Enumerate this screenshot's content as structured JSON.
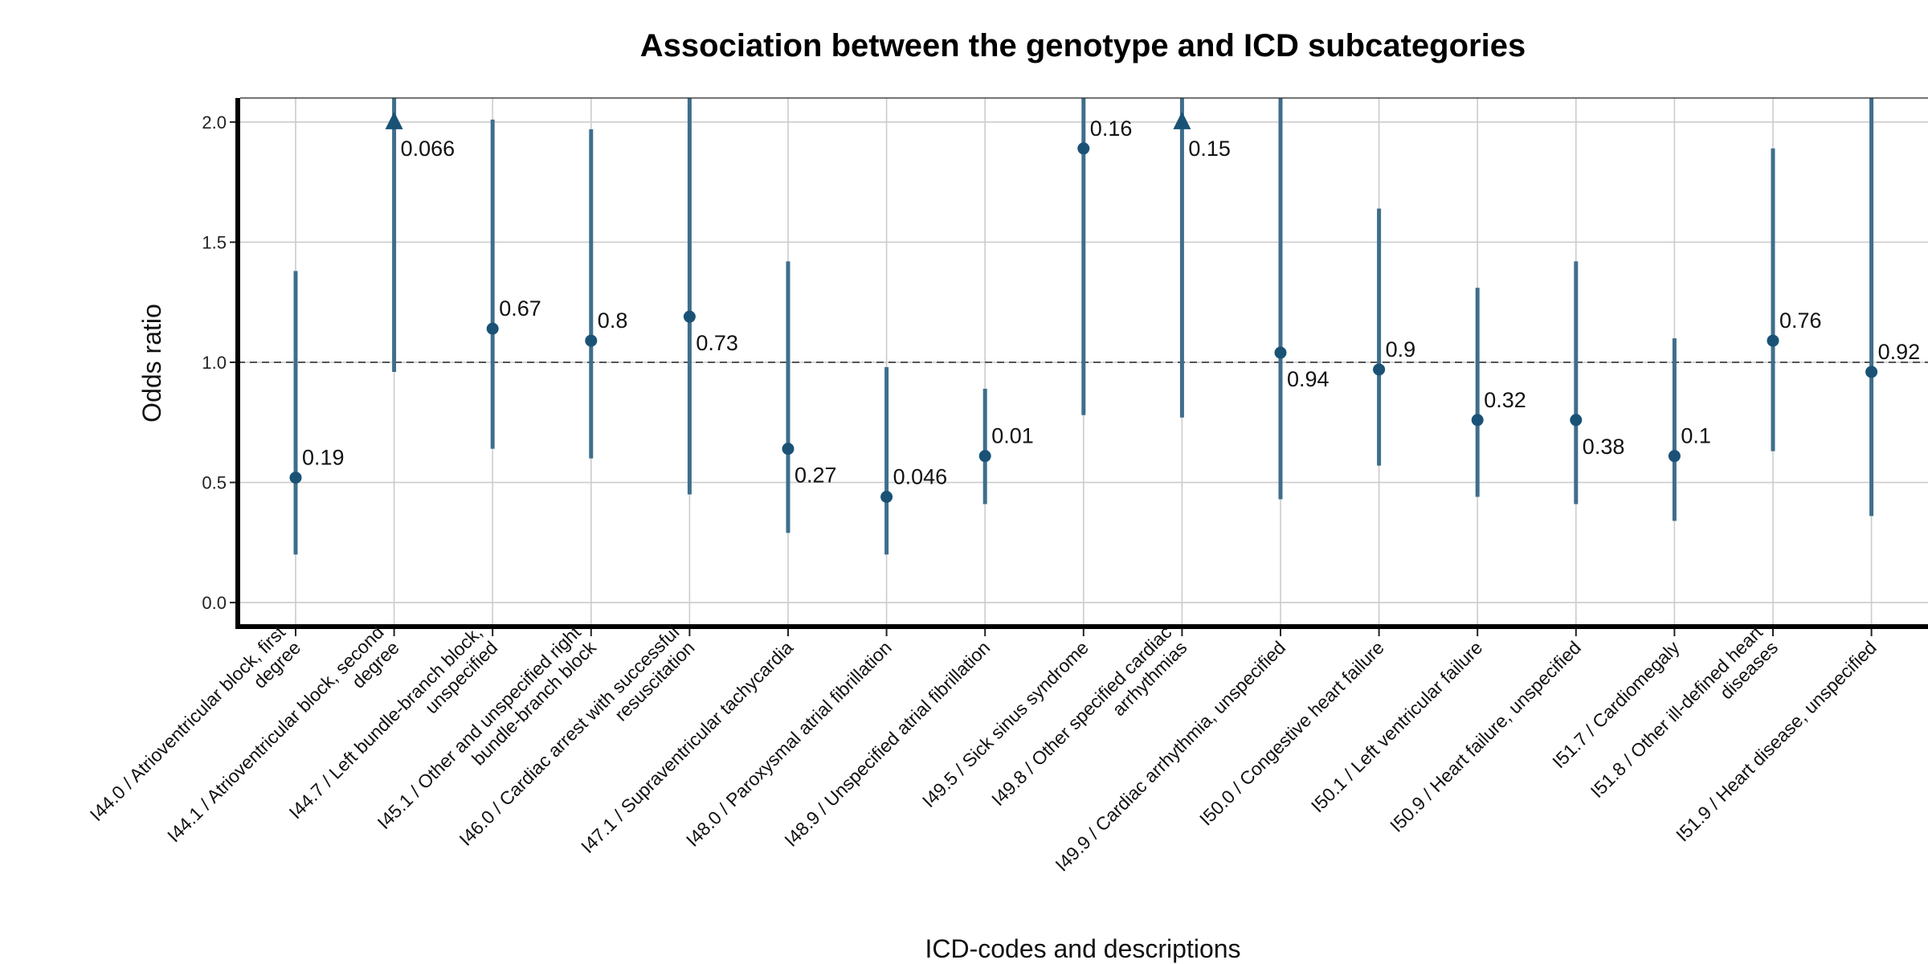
{
  "chart_data": {
    "type": "scatter",
    "subtype": "point-and-interval (odds ratio with confidence interval)",
    "title": "Association between the genotype and ICD subcategories",
    "xlabel": "ICD-codes and descriptions",
    "ylabel": "Odds ratio",
    "ylim": [
      -0.1,
      2.1
    ],
    "yticks": [
      "0.0",
      "0.5",
      "1.0",
      "1.5",
      "2.0"
    ],
    "reference_line": 1.0,
    "grid": true,
    "legend": "none",
    "colors": {
      "point": "#1a5276",
      "interval": "#3f6e8c",
      "reference": "#555555",
      "grid": "#cccccc",
      "axis": "#000000"
    },
    "categories": [
      [
        "I44.0 / Atrioventricular block, first",
        "degree"
      ],
      [
        "I44.1 / Atrioventricular block, second",
        "degree"
      ],
      [
        "I44.7 / Left bundle-branch block,",
        "unspecified"
      ],
      [
        "I45.1 / Other and unspecified right",
        "bundle-branch block"
      ],
      [
        "I46.0 / Cardiac arrest with successful",
        "resuscitation"
      ],
      [
        "I47.1 / Supraventricular tachycardia"
      ],
      [
        "I48.0 / Paroxysmal atrial fibrillation"
      ],
      [
        "I48.9 / Unspecified atrial fibrillation"
      ],
      [
        "I49.5 / Sick sinus syndrome"
      ],
      [
        "I49.8 / Other specified cardiac",
        "arrhythmias"
      ],
      [
        "I49.9 / Cardiac arrhythmia, unspecified"
      ],
      [
        "I50.0 / Congestive heart failure"
      ],
      [
        "I50.1 / Left ventricular failure"
      ],
      [
        "I50.9 / Heart failure, unspecified"
      ],
      [
        "I51.7 / Cardiomegaly"
      ],
      [
        "I51.8 / Other ill-defined heart",
        "diseases"
      ],
      [
        "I51.9 / Heart disease, unspecified"
      ]
    ],
    "odds_ratio": [
      0.52,
      2.0,
      1.14,
      1.09,
      1.19,
      0.64,
      0.44,
      0.61,
      1.89,
      2.0,
      1.04,
      0.97,
      0.76,
      0.76,
      0.61,
      1.09,
      0.96
    ],
    "ci_lower": [
      0.2,
      0.96,
      0.64,
      0.6,
      0.45,
      0.29,
      0.2,
      0.41,
      0.78,
      0.77,
      0.43,
      0.57,
      0.44,
      0.41,
      0.34,
      0.63,
      0.36
    ],
    "ci_upper": [
      1.38,
      2.1,
      2.01,
      1.97,
      2.1,
      1.42,
      0.98,
      0.89,
      2.1,
      2.1,
      2.1,
      1.64,
      1.31,
      1.42,
      1.1,
      1.89,
      2.1
    ],
    "marker": [
      "circle",
      "triangle",
      "circle",
      "circle",
      "circle",
      "circle",
      "circle",
      "circle",
      "circle",
      "triangle",
      "circle",
      "circle",
      "circle",
      "circle",
      "circle",
      "circle",
      "circle"
    ],
    "p_values": [
      "0.19",
      "0.066",
      "0.67",
      "0.8",
      "0.73",
      "0.27",
      "0.046",
      "0.01",
      "0.16",
      "0.15",
      "0.94",
      "0.9",
      "0.32",
      "0.38",
      "0.1",
      "0.76",
      "0.92"
    ],
    "p_label_position": [
      "above",
      "below",
      "above",
      "above",
      "below",
      "below",
      "above",
      "above",
      "above",
      "below",
      "below",
      "above",
      "above",
      "below",
      "above",
      "above",
      "above"
    ]
  }
}
